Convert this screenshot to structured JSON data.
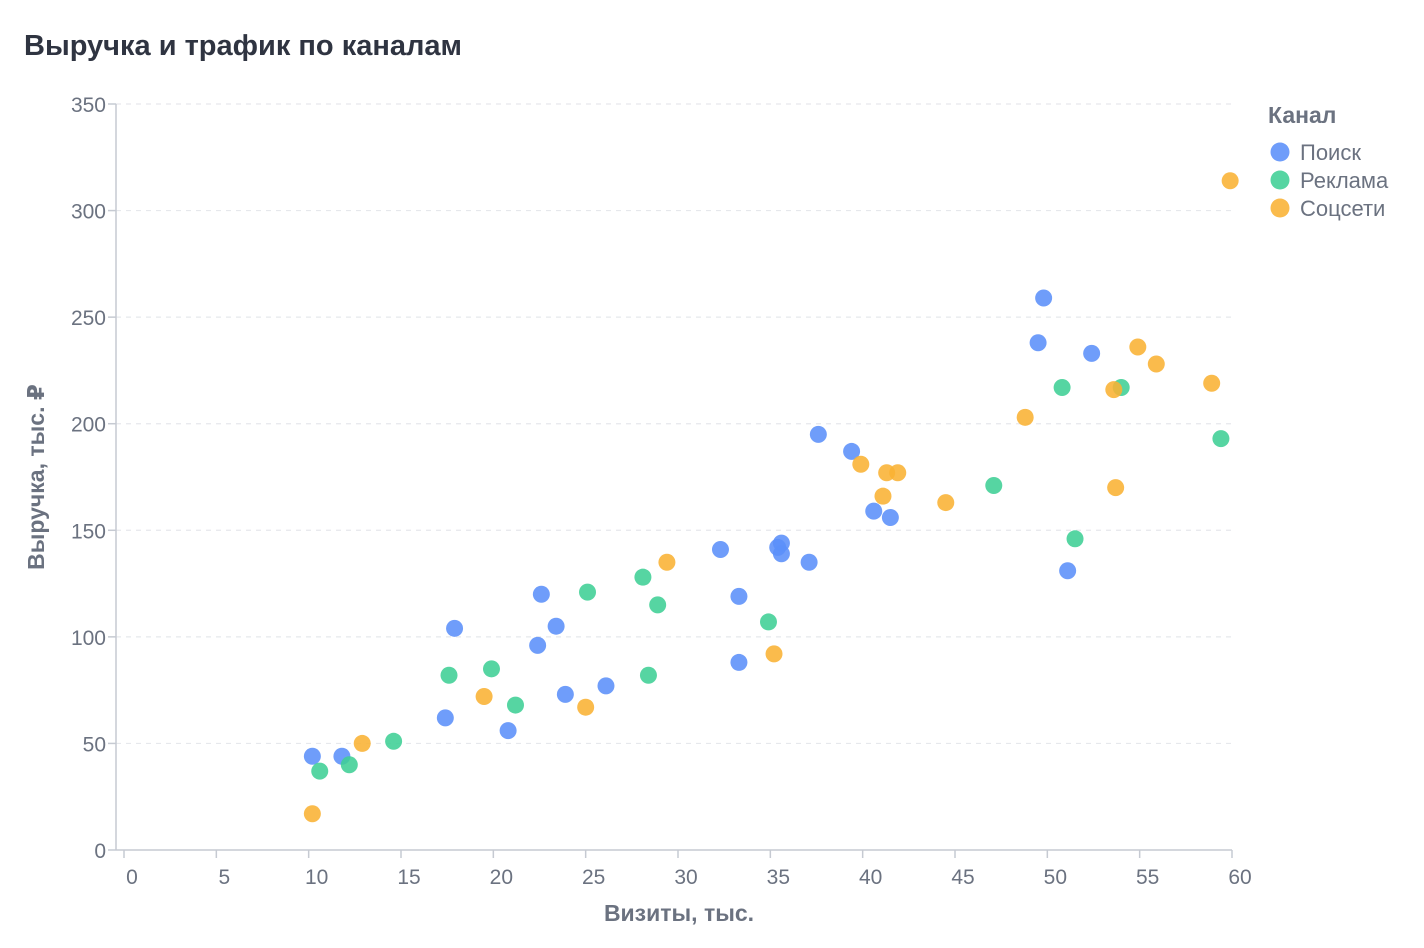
{
  "chart_data": {
    "type": "scatter",
    "title": "Выручка и трафик по каналам",
    "xlabel": "Визиты, тыс.",
    "ylabel": "Выручка, тыс. ₽",
    "xlim": [
      0,
      60
    ],
    "ylim": [
      0,
      350
    ],
    "xticks": [
      0,
      5,
      10,
      15,
      20,
      25,
      30,
      35,
      40,
      45,
      50,
      55,
      60
    ],
    "yticks": [
      0,
      50,
      100,
      150,
      200,
      250,
      300,
      350
    ],
    "grid": "horizontal-dashed",
    "legend": {
      "title": "Канал",
      "position": "right-top"
    },
    "series": [
      {
        "name": "Поиск",
        "color": "#5b8ff9",
        "points": [
          [
            10.2,
            44
          ],
          [
            11.8,
            44
          ],
          [
            17.4,
            62
          ],
          [
            17.9,
            104
          ],
          [
            20.8,
            56
          ],
          [
            22.4,
            96
          ],
          [
            22.6,
            120
          ],
          [
            23.4,
            105
          ],
          [
            23.9,
            73
          ],
          [
            26.1,
            77
          ],
          [
            32.3,
            141
          ],
          [
            33.3,
            119
          ],
          [
            33.3,
            88
          ],
          [
            35.4,
            142
          ],
          [
            35.6,
            144
          ],
          [
            35.6,
            139
          ],
          [
            37.1,
            135
          ],
          [
            37.6,
            195
          ],
          [
            39.4,
            187
          ],
          [
            40.6,
            159
          ],
          [
            41.5,
            156
          ],
          [
            49.5,
            238
          ],
          [
            49.8,
            259
          ],
          [
            51.1,
            131
          ],
          [
            52.4,
            233
          ]
        ]
      },
      {
        "name": "Реклама",
        "color": "#3fcf95",
        "points": [
          [
            10.6,
            37
          ],
          [
            12.2,
            40
          ],
          [
            14.6,
            51
          ],
          [
            17.6,
            82
          ],
          [
            19.9,
            85
          ],
          [
            21.2,
            68
          ],
          [
            25.1,
            121
          ],
          [
            28.1,
            128
          ],
          [
            28.4,
            82
          ],
          [
            28.9,
            115
          ],
          [
            34.9,
            107
          ],
          [
            47.1,
            171
          ],
          [
            50.8,
            217
          ],
          [
            51.5,
            146
          ],
          [
            54.0,
            217
          ],
          [
            59.4,
            193
          ]
        ]
      },
      {
        "name": "Соцсети",
        "color": "#f9b233",
        "points": [
          [
            10.2,
            17
          ],
          [
            12.9,
            50
          ],
          [
            19.5,
            72
          ],
          [
            25.0,
            67
          ],
          [
            29.4,
            135
          ],
          [
            35.2,
            92
          ],
          [
            39.9,
            181
          ],
          [
            41.1,
            166
          ],
          [
            41.3,
            177
          ],
          [
            41.9,
            177
          ],
          [
            44.5,
            163
          ],
          [
            48.8,
            203
          ],
          [
            53.6,
            216
          ],
          [
            53.7,
            170
          ],
          [
            54.9,
            236
          ],
          [
            55.9,
            228
          ],
          [
            58.9,
            219
          ],
          [
            59.9,
            314
          ]
        ]
      }
    ]
  }
}
